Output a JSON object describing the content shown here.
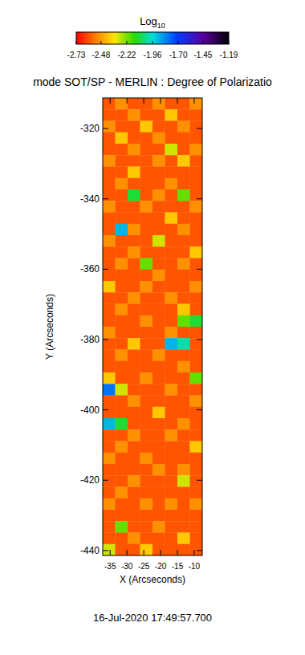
{
  "chart_data": {
    "type": "heatmap",
    "title": "mode SOT/SP - MERLIN : Degree of Polarizatio",
    "xlabel": "X (Arcseconds)",
    "ylabel": "Y (Arcseconds)",
    "annotations": [
      "16-Jul-2020 17:49:57.700"
    ],
    "xlim": [
      -37.2,
      -7.6
    ],
    "xticks": [
      -35,
      -30,
      -25,
      -20,
      -15,
      -10
    ],
    "ylim": [
      -441.4,
      -311.3
    ],
    "yticks": [
      -320,
      -340,
      -360,
      -380,
      -400,
      -420,
      -440
    ],
    "colorbar": {
      "title": "Log10",
      "range": [
        -2.73,
        -1.19
      ],
      "ticks": [
        -2.73,
        -2.48,
        -2.22,
        -1.96,
        {
          "value": -1.7,
          "label": "-1.70"
        },
        -1.45,
        -1.19
      ]
    },
    "cells": [
      [
        -2.6,
        -2.5,
        -2.6,
        -2.6,
        -2.5,
        -2.6,
        -2.6,
        -2.5
      ],
      [
        -2.6,
        -2.6,
        -2.5,
        -2.6,
        -2.6,
        -2.4,
        -2.6,
        -2.6
      ],
      [
        -2.5,
        -2.6,
        -2.6,
        -2.4,
        -2.6,
        -2.6,
        -2.5,
        -2.6
      ],
      [
        -2.6,
        -2.4,
        -2.6,
        -2.6,
        -2.5,
        -2.6,
        -2.6,
        -2.6
      ],
      [
        -2.6,
        -2.6,
        -2.5,
        -2.6,
        -2.6,
        -2.3,
        -2.6,
        -2.5
      ],
      [
        -2.5,
        -2.6,
        -2.6,
        -2.6,
        -2.5,
        -2.6,
        -2.4,
        -2.6
      ],
      [
        -2.6,
        -2.6,
        -2.4,
        -2.6,
        -2.6,
        -2.6,
        -2.6,
        -2.6
      ],
      [
        -2.6,
        -2.5,
        -2.6,
        -2.6,
        -2.6,
        -2.5,
        -2.6,
        -2.6
      ],
      [
        -2.6,
        -2.6,
        -2.1,
        -2.6,
        -2.5,
        -2.6,
        -2.2,
        -2.6
      ],
      [
        -2.5,
        -2.6,
        -2.6,
        -2.5,
        -2.6,
        -2.6,
        -2.6,
        -2.5
      ],
      [
        -2.6,
        -2.6,
        -2.6,
        -2.6,
        -2.6,
        -2.4,
        -2.6,
        -2.6
      ],
      [
        -2.6,
        -1.9,
        -2.5,
        -2.6,
        -2.6,
        -2.6,
        -2.5,
        -2.6
      ],
      [
        -2.5,
        -2.6,
        -2.6,
        -2.6,
        -2.3,
        -2.6,
        -2.6,
        -2.6
      ],
      [
        -2.6,
        -2.6,
        -2.5,
        -2.6,
        -2.6,
        -2.6,
        -2.6,
        -2.4
      ],
      [
        -2.6,
        -2.5,
        -2.6,
        -2.2,
        -2.6,
        -2.6,
        -2.5,
        -2.6
      ],
      [
        -2.6,
        -2.6,
        -2.6,
        -2.6,
        -2.5,
        -2.6,
        -2.6,
        -2.6
      ],
      [
        -2.4,
        -2.6,
        -2.6,
        -2.5,
        -2.6,
        -2.6,
        -2.6,
        -2.5
      ],
      [
        -2.6,
        -2.6,
        -2.5,
        -2.6,
        -2.6,
        -2.5,
        -2.6,
        -2.6
      ],
      [
        -2.6,
        -2.5,
        -2.6,
        -2.6,
        -2.6,
        -2.6,
        -2.4,
        -2.6
      ],
      [
        -2.6,
        -2.6,
        -2.6,
        -2.5,
        -2.6,
        -2.6,
        -2.2,
        -2.1
      ],
      [
        -2.5,
        -2.6,
        -2.6,
        -2.6,
        -2.6,
        -2.5,
        -2.6,
        -2.6
      ],
      [
        -2.6,
        -2.6,
        -2.4,
        -2.6,
        -2.6,
        -1.9,
        -2.0,
        -2.6
      ],
      [
        -2.6,
        -2.5,
        -2.6,
        -2.6,
        -2.5,
        -2.6,
        -2.6,
        -2.6
      ],
      [
        -2.6,
        -2.6,
        -2.6,
        -2.6,
        -2.6,
        -2.6,
        -2.5,
        -2.6
      ],
      [
        -2.4,
        -2.6,
        -2.6,
        -2.5,
        -2.6,
        -2.6,
        -2.6,
        -2.2
      ],
      [
        -1.8,
        -2.3,
        -2.6,
        -2.6,
        -2.6,
        -2.5,
        -2.6,
        -2.6
      ],
      [
        -2.6,
        -2.6,
        -2.5,
        -2.6,
        -2.6,
        -2.6,
        -2.6,
        -2.5
      ],
      [
        -2.6,
        -2.6,
        -2.6,
        -2.6,
        -2.4,
        -2.6,
        -2.6,
        -2.6
      ],
      [
        -1.9,
        -2.1,
        -2.6,
        -2.6,
        -2.6,
        -2.6,
        -2.5,
        -2.6
      ],
      [
        -2.6,
        -2.6,
        -2.5,
        -2.6,
        -2.6,
        -2.5,
        -2.6,
        -2.6
      ],
      [
        -2.6,
        -2.5,
        -2.6,
        -2.6,
        -2.6,
        -2.6,
        -2.6,
        -2.4
      ],
      [
        -2.5,
        -2.6,
        -2.6,
        -2.5,
        -2.6,
        -2.6,
        -2.6,
        -2.6
      ],
      [
        -2.6,
        -2.6,
        -2.6,
        -2.6,
        -2.5,
        -2.6,
        -2.5,
        -2.6
      ],
      [
        -2.6,
        -2.6,
        -2.5,
        -2.6,
        -2.6,
        -2.6,
        -2.3,
        -2.6
      ],
      [
        -2.6,
        -2.5,
        -2.6,
        -2.6,
        -2.6,
        -2.6,
        -2.6,
        -2.6
      ],
      [
        -2.5,
        -2.6,
        -2.6,
        -2.5,
        -2.6,
        -2.5,
        -2.6,
        -2.5
      ],
      [
        -2.6,
        -2.6,
        -2.6,
        -2.6,
        -2.6,
        -2.6,
        -2.6,
        -2.6
      ],
      [
        -2.6,
        -2.2,
        -2.6,
        -2.6,
        -2.5,
        -2.6,
        -2.6,
        -2.6
      ],
      [
        -2.6,
        -2.6,
        -2.5,
        -2.6,
        -2.6,
        -2.6,
        -2.4,
        -2.6
      ],
      [
        -2.3,
        -2.6,
        -2.6,
        -2.4,
        -2.6,
        -2.6,
        -2.6,
        -2.6
      ]
    ]
  }
}
